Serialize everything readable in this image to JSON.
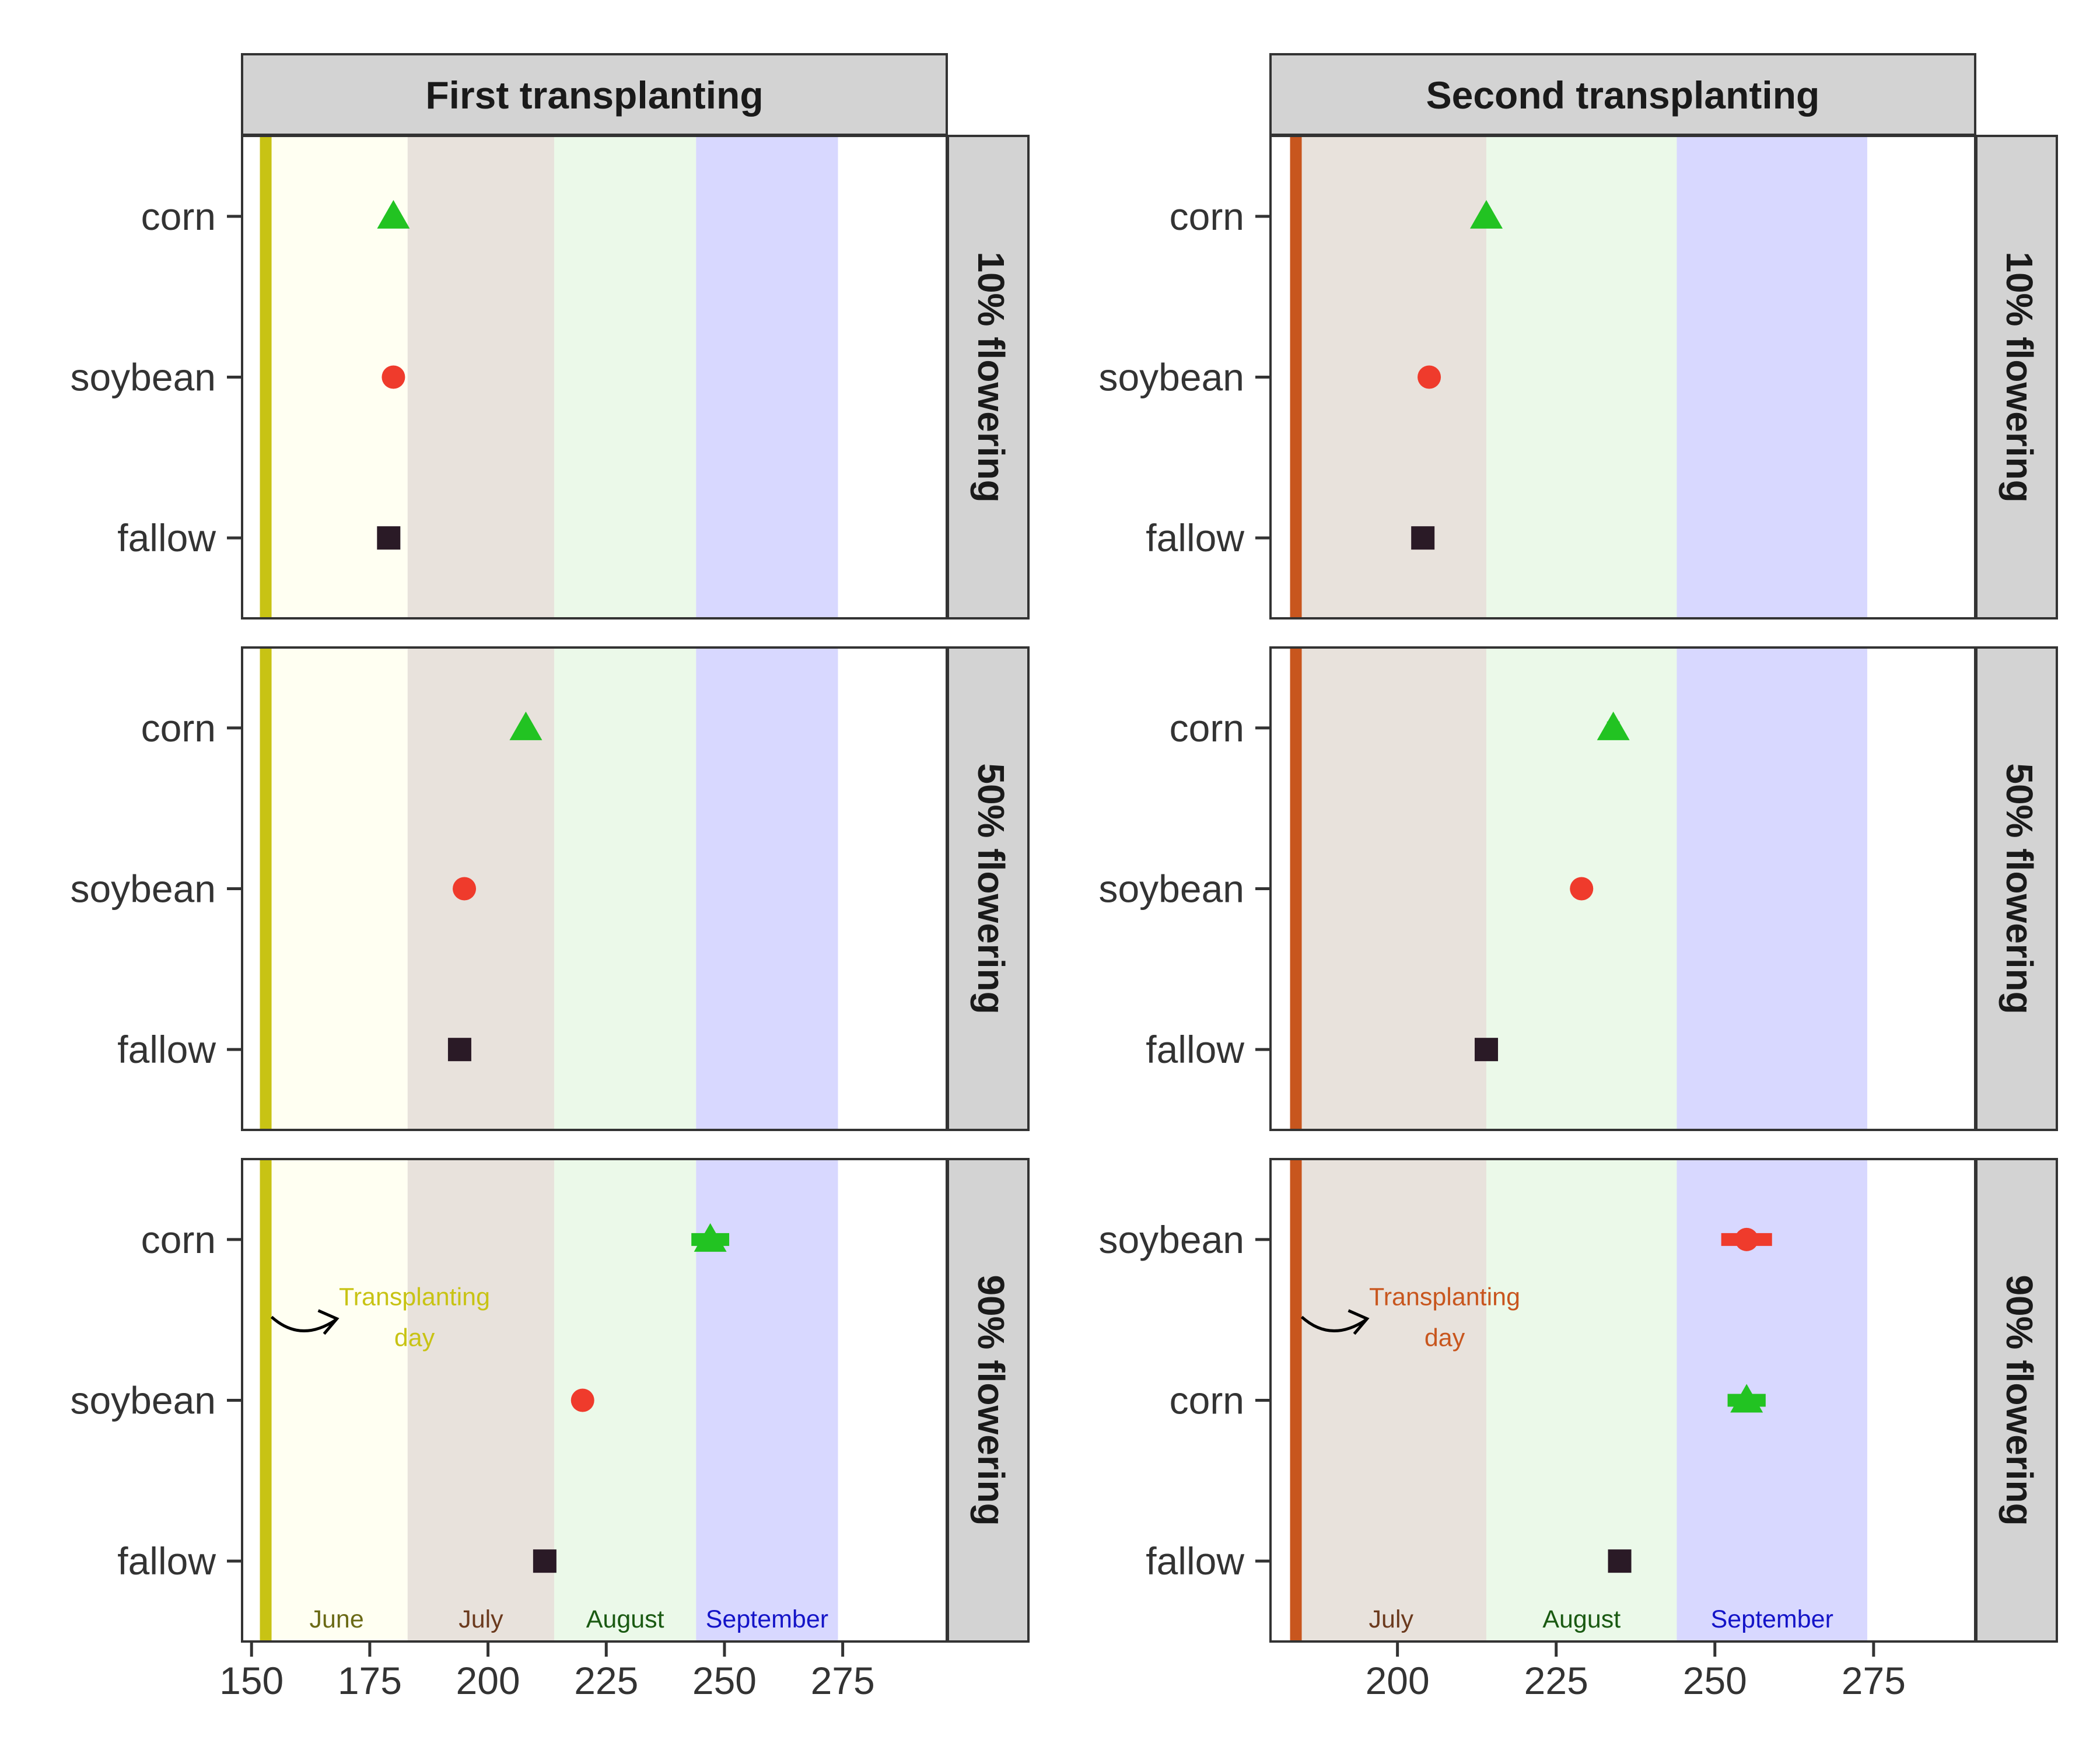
{
  "colors": {
    "corn": "#22c322",
    "soybean": "#ef3b2c",
    "fallow": "#2a1a26",
    "june_band": "#fffff2",
    "july_band": "#e8e2dc",
    "august_band": "#ebf9e9",
    "september_band": "#d8d8ff",
    "first_transplant_line": "#c8c314",
    "second_transplant_line": "#c8561e",
    "strip_fill": "#d3d3d3"
  },
  "chart_data": [
    {
      "type": "scatter",
      "column": "First transplanting",
      "row": "10% flowering",
      "xlim": [
        148,
        297
      ],
      "transplant_day": 153,
      "categories": [
        "fallow",
        "soybean",
        "corn"
      ],
      "points": [
        {
          "name": "corn",
          "x": 180,
          "xmin": 180,
          "xmax": 180
        },
        {
          "name": "soybean",
          "x": 180,
          "xmin": 180,
          "xmax": 180
        },
        {
          "name": "fallow",
          "x": 179,
          "xmin": 179,
          "xmax": 179
        }
      ]
    },
    {
      "type": "scatter",
      "column": "First transplanting",
      "row": "50% flowering",
      "xlim": [
        148,
        297
      ],
      "transplant_day": 153,
      "categories": [
        "fallow",
        "soybean",
        "corn"
      ],
      "points": [
        {
          "name": "corn",
          "x": 208,
          "xmin": 207,
          "xmax": 209
        },
        {
          "name": "soybean",
          "x": 195,
          "xmin": 195,
          "xmax": 195
        },
        {
          "name": "fallow",
          "x": 194,
          "xmin": 194,
          "xmax": 194
        }
      ]
    },
    {
      "type": "scatter",
      "column": "First transplanting",
      "row": "90% flowering",
      "xlim": [
        148,
        297
      ],
      "transplant_day": 153,
      "categories": [
        "fallow",
        "soybean",
        "corn"
      ],
      "points": [
        {
          "name": "corn",
          "x": 247,
          "xmin": 243,
          "xmax": 251
        },
        {
          "name": "soybean",
          "x": 220,
          "xmin": 219,
          "xmax": 221
        },
        {
          "name": "fallow",
          "x": 212,
          "xmin": 212,
          "xmax": 212
        }
      ]
    },
    {
      "type": "scatter",
      "column": "Second transplanting",
      "row": "10% flowering",
      "xlim": [
        180,
        291
      ],
      "transplant_day": 184,
      "categories": [
        "fallow",
        "soybean",
        "corn"
      ],
      "points": [
        {
          "name": "corn",
          "x": 214,
          "xmin": 214,
          "xmax": 214
        },
        {
          "name": "soybean",
          "x": 205,
          "xmin": 205,
          "xmax": 205
        },
        {
          "name": "fallow",
          "x": 204,
          "xmin": 204,
          "xmax": 204
        }
      ]
    },
    {
      "type": "scatter",
      "column": "Second transplanting",
      "row": "50% flowering",
      "xlim": [
        180,
        291
      ],
      "transplant_day": 184,
      "categories": [
        "fallow",
        "soybean",
        "corn"
      ],
      "points": [
        {
          "name": "corn",
          "x": 234,
          "xmin": 233,
          "xmax": 235
        },
        {
          "name": "soybean",
          "x": 229,
          "xmin": 228,
          "xmax": 230
        },
        {
          "name": "fallow",
          "x": 214,
          "xmin": 214,
          "xmax": 214
        }
      ]
    },
    {
      "type": "scatter",
      "column": "Second transplanting",
      "row": "90% flowering",
      "xlim": [
        180,
        291
      ],
      "transplant_day": 184,
      "categories": [
        "fallow",
        "corn",
        "soybean"
      ],
      "points": [
        {
          "name": "soybean",
          "x": 255,
          "xmin": 251,
          "xmax": 259
        },
        {
          "name": "corn",
          "x": 255,
          "xmin": 252,
          "xmax": 258
        },
        {
          "name": "fallow",
          "x": 235,
          "xmin": 235,
          "xmax": 235
        }
      ]
    }
  ],
  "facets": {
    "columns": [
      "First transplanting",
      "Second transplanting"
    ],
    "rows": [
      "10% flowering",
      "50% flowering",
      "90% flowering"
    ]
  },
  "month_bands": {
    "first": [
      {
        "label": "June",
        "start": 153,
        "end": 183,
        "color": "#6b6a16"
      },
      {
        "label": "July",
        "start": 183,
        "end": 214,
        "color": "#6b3a1e"
      },
      {
        "label": "August",
        "start": 214,
        "end": 244,
        "color": "#1a5a12"
      },
      {
        "label": "September",
        "start": 244,
        "end": 274,
        "color": "#1414c8"
      }
    ],
    "second": [
      {
        "label": "July",
        "start": 184,
        "end": 214,
        "color": "#6b3a1e"
      },
      {
        "label": "August",
        "start": 214,
        "end": 244,
        "color": "#1a5a12"
      },
      {
        "label": "September",
        "start": 244,
        "end": 274,
        "color": "#1414c8"
      }
    ]
  },
  "x_ticks": {
    "first": [
      150,
      175,
      200,
      225,
      250,
      275
    ],
    "second": [
      200,
      225,
      250,
      275
    ]
  },
  "annotation": {
    "line1": "Transplanting",
    "line2": "day"
  }
}
